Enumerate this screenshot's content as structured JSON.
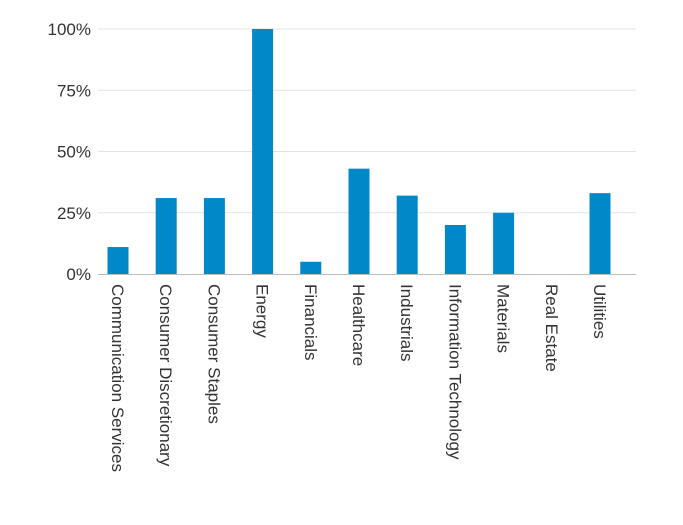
{
  "chart_data": {
    "type": "bar",
    "title": "",
    "xlabel": "",
    "ylabel": "",
    "ylim": [
      0,
      100
    ],
    "yticks": [
      0,
      25,
      50,
      75,
      100
    ],
    "ytick_labels": [
      "0%",
      "25%",
      "50%",
      "75%",
      "100%"
    ],
    "grid": true,
    "bar_color": "#0088c9",
    "categories": [
      "Communication Services",
      "Consumer Discretionary",
      "Consumer Staples",
      "Energy",
      "Financials",
      "Healthcare",
      "Industrials",
      "Information Technology",
      "Materials",
      "Real Estate",
      "Utilities"
    ],
    "values": [
      11,
      31,
      31,
      100,
      5,
      43,
      32,
      20,
      25,
      0,
      33
    ]
  }
}
